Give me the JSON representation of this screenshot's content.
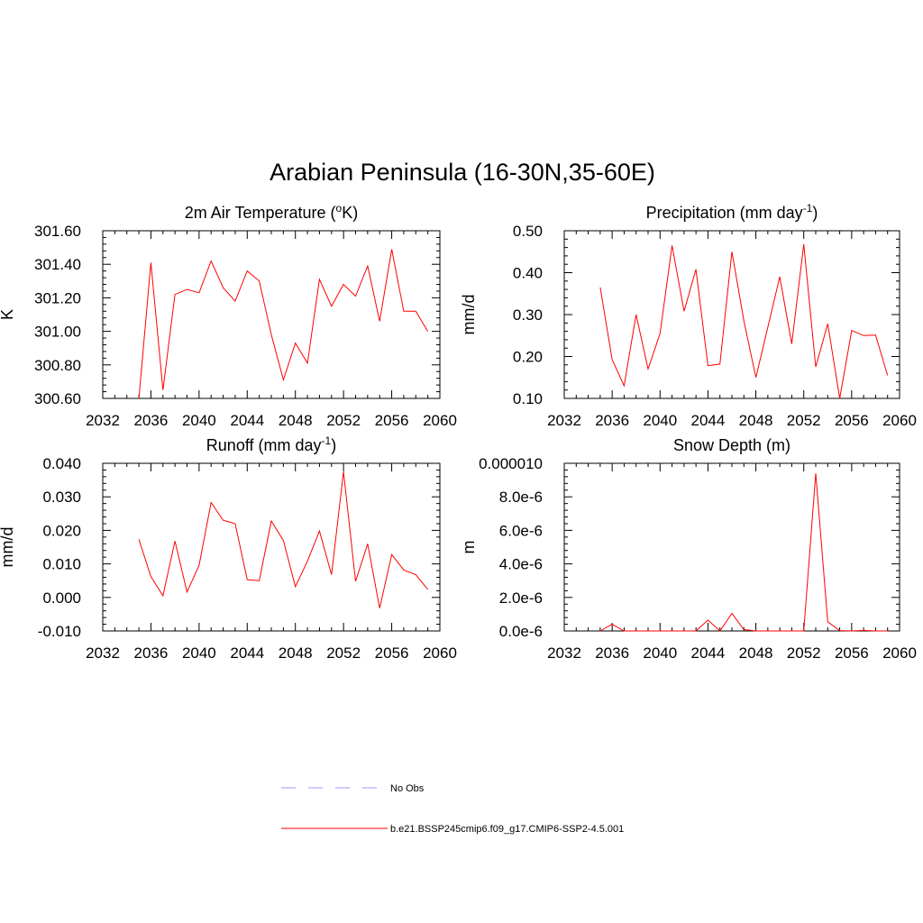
{
  "figure": {
    "title": "Arabian Peninsula (16-30N,35-60E)"
  },
  "legend": [
    {
      "label": "No Obs",
      "color": "#9999ff",
      "dash": true
    },
    {
      "label": "b.e21.BSSP245cmip6.f09_g17.CMIP6-SSP2-4.5.001",
      "color": "#ff0000",
      "dash": false
    }
  ],
  "chart_data": [
    {
      "type": "line",
      "title": "2m Air Temperature (",
      "title_sup": "o",
      "title_end": "K)",
      "ylabel": "K",
      "xlim": [
        2032,
        2060
      ],
      "ylim": [
        300.6,
        301.6
      ],
      "xticks": [
        2032,
        2036,
        2040,
        2044,
        2048,
        2052,
        2056,
        2060
      ],
      "yticks": [
        300.6,
        300.8,
        301.0,
        301.2,
        301.4,
        301.6
      ],
      "ytick_labels": [
        "300.60",
        "300.80",
        "301.00",
        "301.20",
        "301.40",
        "301.60"
      ],
      "series": [
        {
          "color": "#ff0000",
          "x": [
            2035,
            2036,
            2037,
            2038,
            2039,
            2040,
            2041,
            2042,
            2043,
            2044,
            2045,
            2046,
            2047,
            2048,
            2049,
            2050,
            2051,
            2052,
            2053,
            2054,
            2055,
            2056,
            2057,
            2058,
            2059
          ],
          "y": [
            300.6,
            301.41,
            300.65,
            301.22,
            301.25,
            301.23,
            301.42,
            301.26,
            301.18,
            301.36,
            301.3,
            300.98,
            300.71,
            300.93,
            300.81,
            301.31,
            301.15,
            301.28,
            301.21,
            301.39,
            301.06,
            301.49,
            301.12,
            301.12,
            301.0
          ]
        }
      ]
    },
    {
      "type": "line",
      "title": "Precipitation (mm day",
      "title_sup": "-1",
      "title_end": ")",
      "ylabel": "mm/d",
      "xlim": [
        2032,
        2060
      ],
      "ylim": [
        0.1,
        0.5
      ],
      "xticks": [
        2032,
        2036,
        2040,
        2044,
        2048,
        2052,
        2056,
        2060
      ],
      "yticks": [
        0.1,
        0.2,
        0.3,
        0.4,
        0.5
      ],
      "ytick_labels": [
        "0.10",
        "0.20",
        "0.30",
        "0.40",
        "0.50"
      ],
      "series": [
        {
          "color": "#ff0000",
          "x": [
            2035,
            2036,
            2037,
            2038,
            2039,
            2040,
            2041,
            2042,
            2043,
            2044,
            2045,
            2046,
            2047,
            2048,
            2049,
            2050,
            2051,
            2052,
            2053,
            2054,
            2055,
            2056,
            2057,
            2058,
            2059
          ],
          "y": [
            0.365,
            0.193,
            0.13,
            0.3,
            0.17,
            0.255,
            0.465,
            0.308,
            0.408,
            0.178,
            0.182,
            0.45,
            0.285,
            0.15,
            0.27,
            0.39,
            0.23,
            0.468,
            0.175,
            0.278,
            0.1,
            0.262,
            0.25,
            0.251,
            0.155
          ]
        }
      ]
    },
    {
      "type": "line",
      "title": "Runoff (mm day",
      "title_sup": "-1",
      "title_end": ")",
      "ylabel": "mm/d",
      "xlim": [
        2032,
        2060
      ],
      "ylim": [
        -0.01,
        0.04
      ],
      "xticks": [
        2032,
        2036,
        2040,
        2044,
        2048,
        2052,
        2056,
        2060
      ],
      "yticks": [
        -0.01,
        0.0,
        0.01,
        0.02,
        0.03,
        0.04
      ],
      "ytick_labels": [
        "-0.010",
        "0.000",
        "0.010",
        "0.020",
        "0.030",
        "0.040"
      ],
      "series": [
        {
          "color": "#ff0000",
          "x": [
            2035,
            2036,
            2037,
            2038,
            2039,
            2040,
            2041,
            2042,
            2043,
            2044,
            2045,
            2046,
            2047,
            2048,
            2049,
            2050,
            2051,
            2052,
            2053,
            2054,
            2055,
            2056,
            2057,
            2058,
            2059
          ],
          "y": [
            0.0173,
            0.0062,
            0.0005,
            0.0168,
            0.0016,
            0.0096,
            0.0283,
            0.023,
            0.022,
            0.0053,
            0.005,
            0.0228,
            0.017,
            0.0032,
            0.0108,
            0.0198,
            0.0068,
            0.0375,
            0.0048,
            0.016,
            -0.0032,
            0.0128,
            0.0082,
            0.0068,
            0.0024
          ]
        }
      ]
    },
    {
      "type": "line",
      "title": "Snow Depth (m)",
      "title_sup": "",
      "title_end": "",
      "ylabel": "m",
      "xlim": [
        2032,
        2060
      ],
      "ylim": [
        0.0,
        1e-05
      ],
      "xticks": [
        2032,
        2036,
        2040,
        2044,
        2048,
        2052,
        2056,
        2060
      ],
      "yticks": [
        0.0,
        2e-06,
        4e-06,
        6e-06,
        8e-06,
        1e-05
      ],
      "ytick_labels": [
        "0.0e-6",
        "2.0e-6",
        "4.0e-6",
        "6.0e-6",
        "8.0e-6",
        "0.000010"
      ],
      "series": [
        {
          "color": "#ff0000",
          "x": [
            2035,
            2036,
            2037,
            2038,
            2039,
            2040,
            2041,
            2042,
            2043,
            2044,
            2045,
            2046,
            2047,
            2048,
            2049,
            2050,
            2051,
            2052,
            2053,
            2054,
            2055,
            2056,
            2057,
            2058,
            2059
          ],
          "y": [
            0.0,
            4e-07,
            0.0,
            0.0,
            0.0,
            0.0,
            0.0,
            0.0,
            0.0,
            6.5e-07,
            0.0,
            1.05e-06,
            8e-08,
            0.0,
            0.0,
            0.0,
            0.0,
            0.0,
            9.4e-06,
            5.5e-07,
            2e-08,
            0.0,
            3e-08,
            0.0,
            0.0
          ]
        }
      ]
    }
  ]
}
